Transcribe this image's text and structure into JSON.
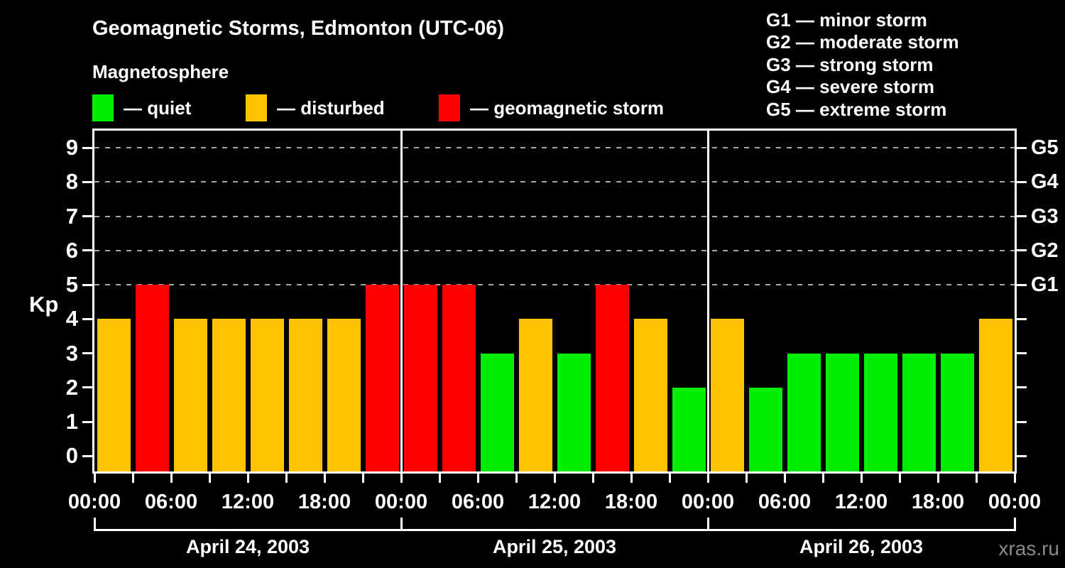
{
  "colors": {
    "quiet": "#00ee00",
    "disturbed": "#ffc200",
    "storm": "#ff0000",
    "axis": "#ffffff",
    "grid": "#a8a8a8",
    "watermark": "#8a8a8a",
    "background": "#000000"
  },
  "condition_legend": [
    {
      "key": "quiet",
      "label": "— quiet"
    },
    {
      "key": "disturbed",
      "label": "— disturbed"
    },
    {
      "key": "storm",
      "label": "— geomagnetic storm"
    }
  ],
  "storm_scale_legend": [
    {
      "level": "G1",
      "text": "G1 — minor storm"
    },
    {
      "level": "G2",
      "text": "G2 — moderate storm"
    },
    {
      "level": "G3",
      "text": "G3 — strong storm"
    },
    {
      "level": "G4",
      "text": "G4 — severe storm"
    },
    {
      "level": "G5",
      "text": "G5 — extreme storm"
    }
  ],
  "watermark": "xras.ru",
  "chart_data": {
    "type": "bar",
    "title": "Geomagnetic Storms, Edmonton (UTC-06)",
    "subtitle": "Magnetosphere",
    "ylabel": "Kp",
    "ylim": [
      0,
      9
    ],
    "yticks": [
      0,
      1,
      2,
      3,
      4,
      5,
      6,
      7,
      8,
      9
    ],
    "gridlines_at_kp": [
      5,
      6,
      7,
      8,
      9
    ],
    "grid_style": "dashed",
    "right_axis_labels": [
      {
        "kp": 5,
        "label": "G1"
      },
      {
        "kp": 6,
        "label": "G2"
      },
      {
        "kp": 7,
        "label": "G3"
      },
      {
        "kp": 8,
        "label": "G4"
      },
      {
        "kp": 9,
        "label": "G5"
      }
    ],
    "hours_per_bar": 3,
    "x_tick_labels": [
      "00:00",
      "06:00",
      "12:00",
      "18:00",
      "00:00",
      "06:00",
      "12:00",
      "18:00",
      "00:00",
      "06:00",
      "12:00",
      "18:00",
      "00:00"
    ],
    "days": [
      {
        "date": "April 24, 2003",
        "kp_values": [
          4,
          5,
          4,
          4,
          4,
          4,
          4,
          5
        ],
        "states": [
          "disturbed",
          "storm",
          "disturbed",
          "disturbed",
          "disturbed",
          "disturbed",
          "disturbed",
          "storm"
        ]
      },
      {
        "date": "April 25, 2003",
        "kp_values": [
          5,
          5,
          3,
          4,
          3,
          5,
          4,
          2
        ],
        "states": [
          "storm",
          "storm",
          "quiet",
          "disturbed",
          "quiet",
          "storm",
          "disturbed",
          "quiet"
        ]
      },
      {
        "date": "April 26, 2003",
        "kp_values": [
          4,
          2,
          3,
          3,
          3,
          3,
          3,
          4
        ],
        "states": [
          "disturbed",
          "quiet",
          "quiet",
          "quiet",
          "quiet",
          "quiet",
          "quiet",
          "disturbed"
        ]
      }
    ]
  }
}
